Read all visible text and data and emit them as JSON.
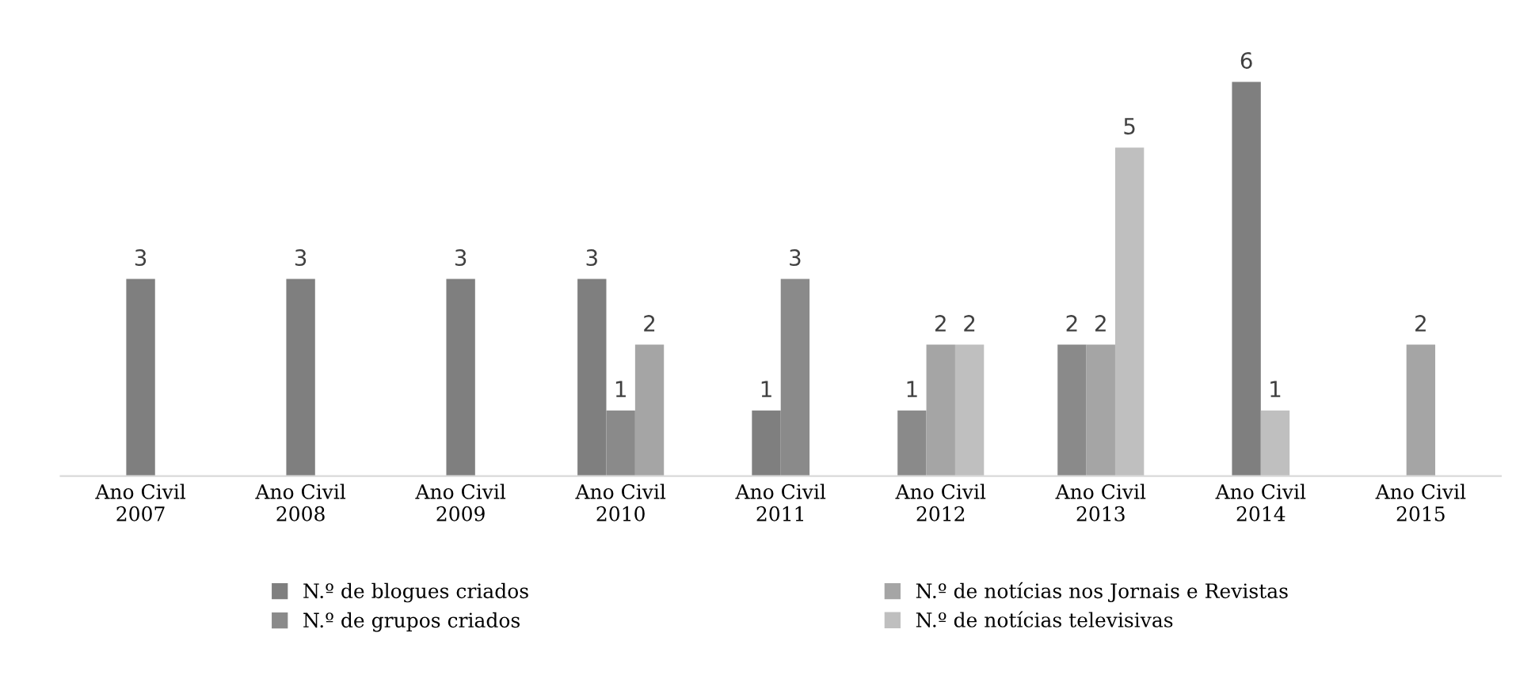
{
  "chart_data": {
    "type": "bar",
    "categories": [
      "Ano Civil\n2007",
      "Ano Civil\n2008",
      "Ano Civil\n2009",
      "Ano Civil\n2010",
      "Ano Civil\n2011",
      "Ano Civil\n2012",
      "Ano Civil\n2013",
      "Ano Civil\n2014",
      "Ano Civil\n2015"
    ],
    "series": [
      {
        "name": "N.º de blogues criados",
        "color": "#7f7f7f",
        "values": [
          3,
          3,
          3,
          3,
          1,
          null,
          null,
          6,
          null
        ]
      },
      {
        "name": "N.º de grupos criados",
        "color": "#8a8a8a",
        "values": [
          null,
          null,
          null,
          1,
          3,
          1,
          2,
          null,
          null
        ]
      },
      {
        "name": "N.º de notícias nos Jornais e Revistas",
        "color": "#a5a5a5",
        "values": [
          null,
          null,
          null,
          2,
          null,
          2,
          2,
          null,
          2
        ]
      },
      {
        "name": "N.º de notícias televisivas",
        "color": "#bfbfbf",
        "values": [
          null,
          null,
          null,
          null,
          null,
          2,
          5,
          1,
          null
        ]
      }
    ],
    "data_labels": true,
    "grid": false,
    "legend": "bottom"
  }
}
